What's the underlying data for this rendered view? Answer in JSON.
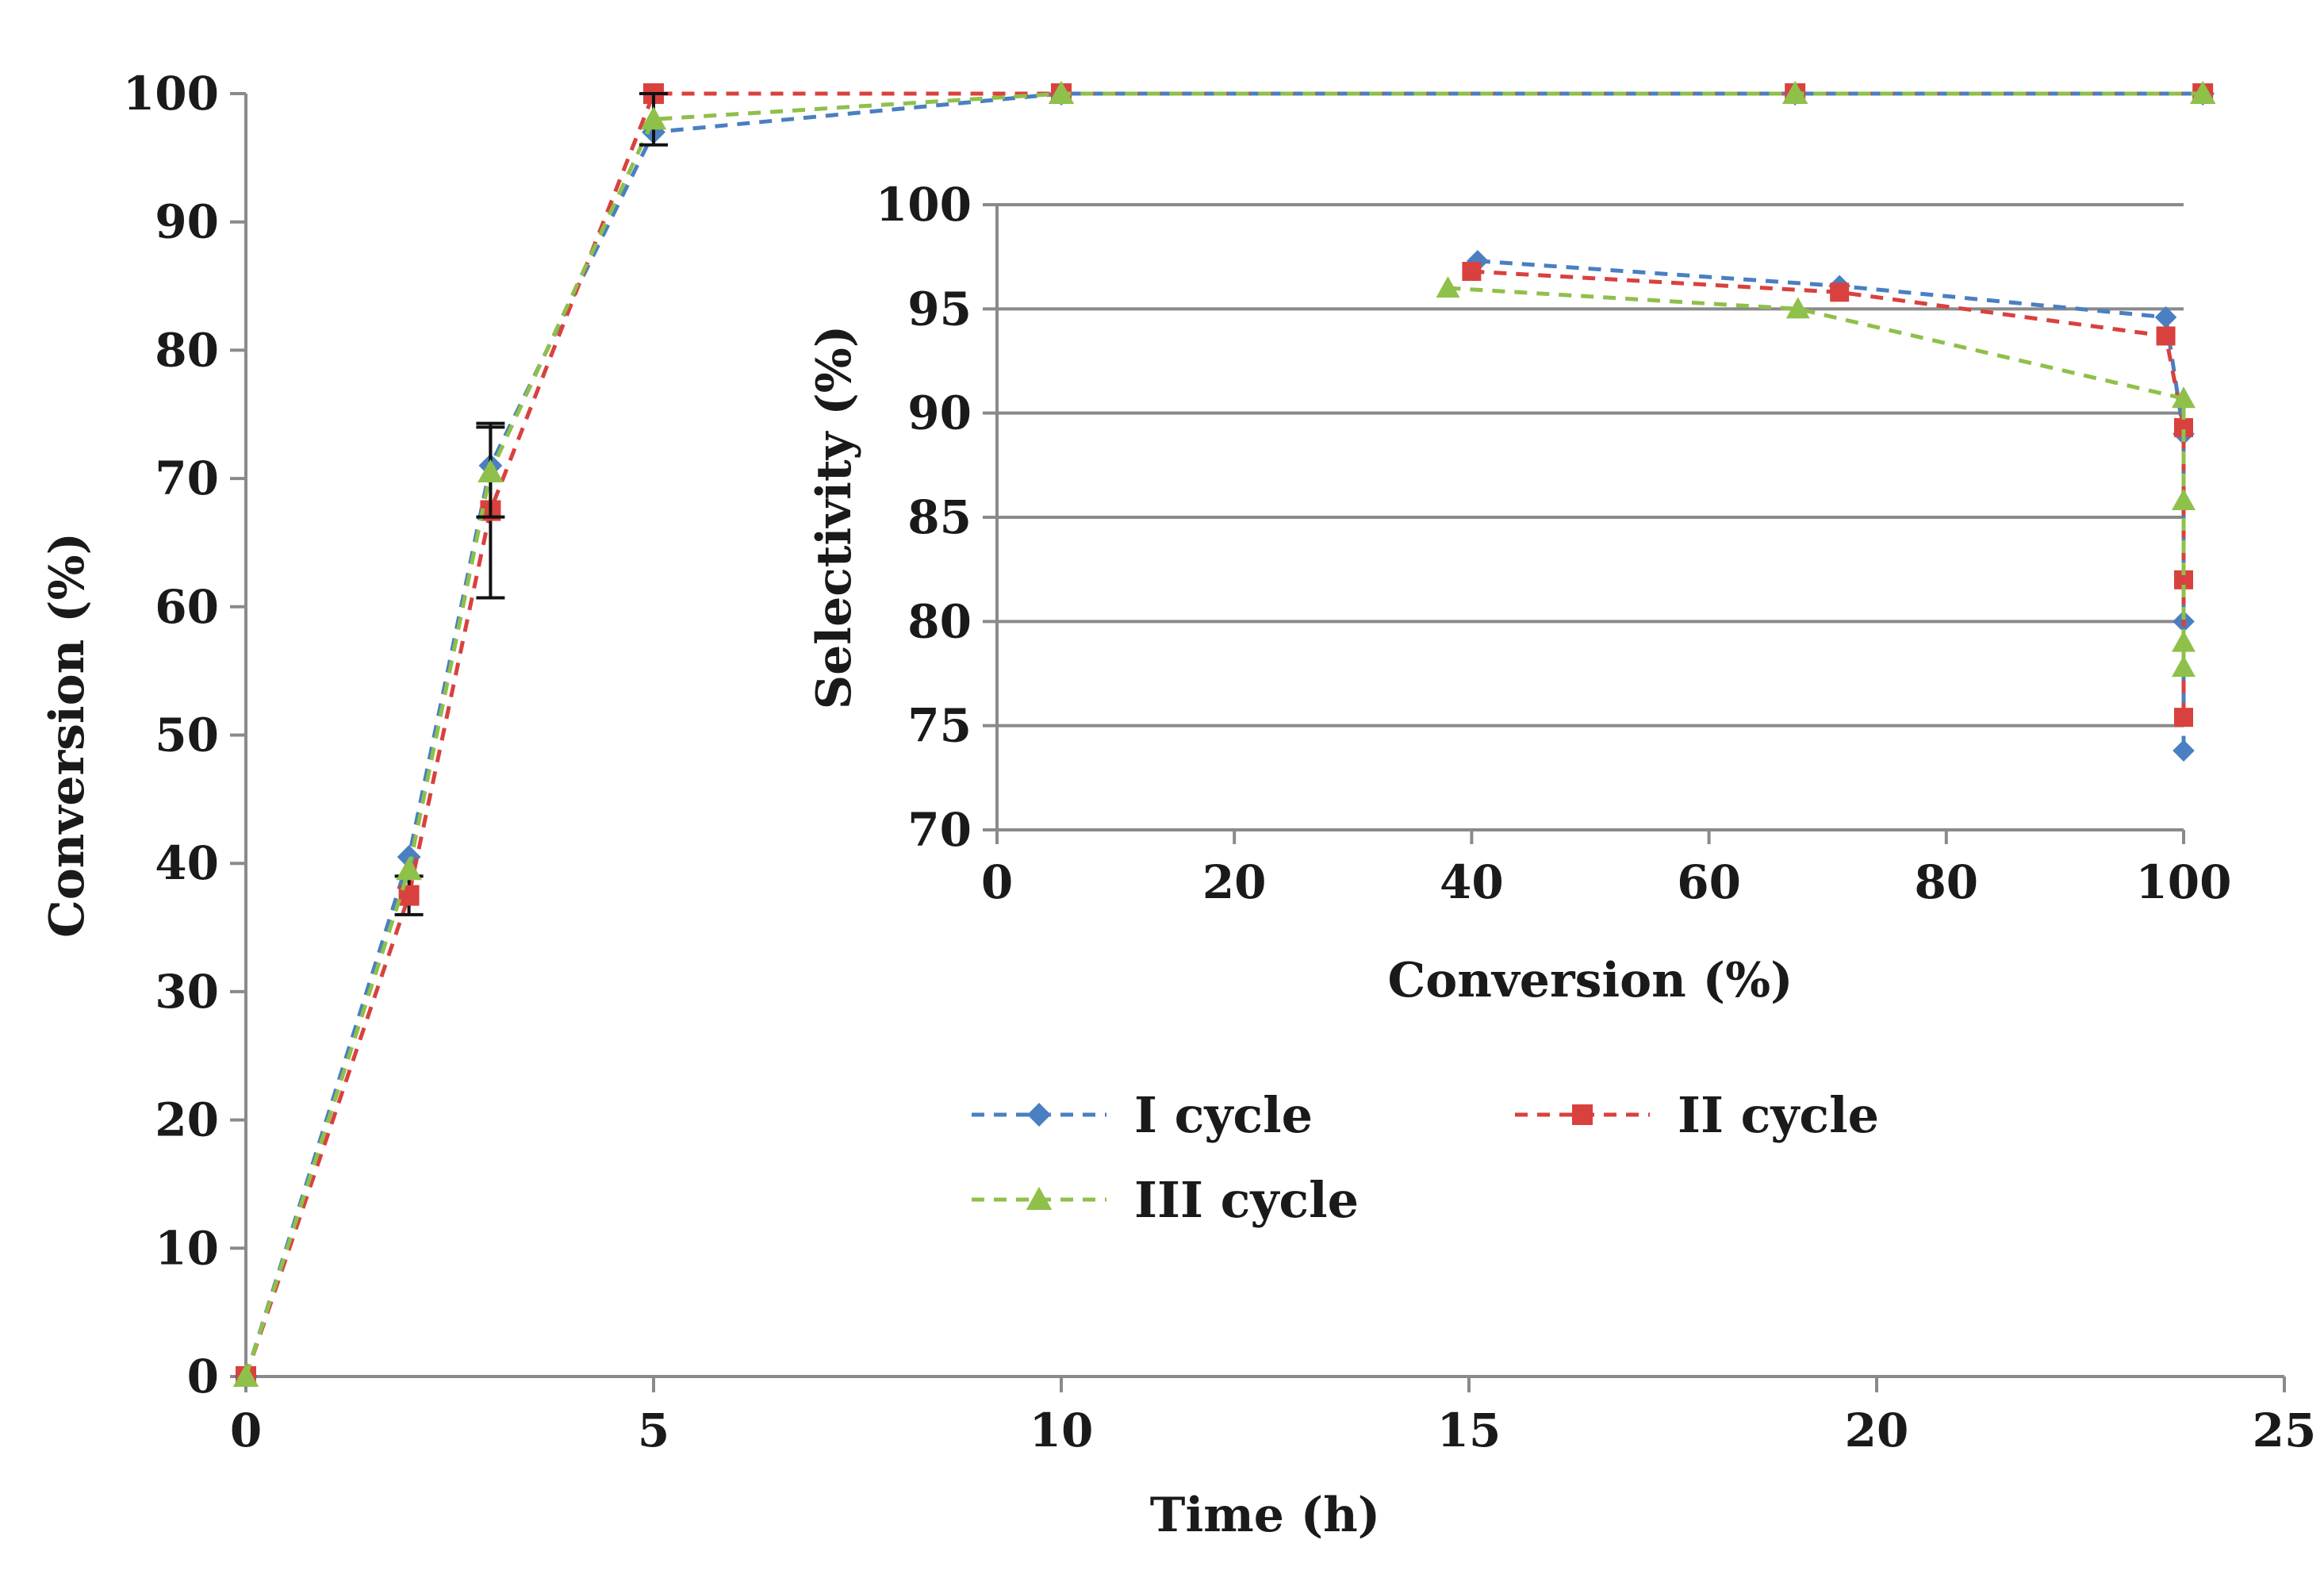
{
  "chart_data": [
    {
      "id": "main",
      "type": "line",
      "title": "",
      "xlabel": "Time (h)",
      "ylabel": "Conversion (%)",
      "xlim": [
        0,
        25
      ],
      "ylim": [
        0,
        100
      ],
      "xticks": [
        0,
        5,
        10,
        15,
        20,
        25
      ],
      "yticks": [
        0,
        10,
        20,
        30,
        40,
        50,
        60,
        70,
        80,
        90,
        100
      ],
      "grid": false,
      "series": [
        {
          "name": "I cycle",
          "color": "#4a7fc1",
          "marker": "diamond",
          "x": [
            0,
            2,
            3,
            5,
            10,
            19,
            24
          ],
          "y": [
            0,
            40.5,
            71,
            97,
            100,
            100,
            100
          ]
        },
        {
          "name": "II cycle",
          "color": "#d9413e",
          "marker": "square",
          "x": [
            0,
            2,
            3,
            5,
            10,
            19,
            24
          ],
          "y": [
            0,
            37.5,
            67.5,
            100,
            100,
            100,
            100
          ],
          "error": [
            0,
            1.5,
            6.8,
            0,
            0,
            0,
            0
          ]
        },
        {
          "name": "III cycle",
          "color": "#8fc04a",
          "marker": "triangle",
          "x": [
            0,
            2,
            3,
            5,
            10,
            19,
            24
          ],
          "y": [
            0,
            39.5,
            70.5,
            98,
            100,
            100,
            100
          ],
          "error": [
            0,
            0,
            3.5,
            2.0,
            0,
            0,
            0
          ]
        }
      ]
    },
    {
      "id": "inset",
      "type": "line",
      "title": "",
      "xlabel": "Conversion (%)",
      "ylabel": "Selectivity (%)",
      "xlim": [
        0,
        100
      ],
      "ylim": [
        70,
        100
      ],
      "xticks": [
        0,
        20,
        40,
        60,
        80,
        100
      ],
      "yticks": [
        70,
        75,
        80,
        85,
        90,
        95,
        100
      ],
      "grid": true,
      "series": [
        {
          "name": "I cycle",
          "color": "#4a7fc1",
          "marker": "diamond",
          "x": [
            40.5,
            71,
            98.5,
            100,
            100,
            100
          ],
          "y": [
            97.3,
            96.1,
            94.6,
            89,
            80,
            73.8
          ]
        },
        {
          "name": "II cycle",
          "color": "#d9413e",
          "marker": "square",
          "x": [
            40,
            71,
            98.5,
            100,
            100,
            100
          ],
          "y": [
            96.8,
            95.8,
            93.7,
            89.3,
            82,
            75.4
          ]
        },
        {
          "name": "III cycle",
          "color": "#8fc04a",
          "marker": "triangle",
          "x": [
            38,
            67.5,
            100,
            100,
            100,
            100
          ],
          "y": [
            96,
            95,
            90.7,
            85.8,
            79,
            77.8
          ]
        }
      ]
    }
  ],
  "legend": {
    "placement": "center-right",
    "items": [
      {
        "label": "I cycle",
        "color": "#4a7fc1",
        "marker": "diamond"
      },
      {
        "label": "II cycle",
        "color": "#d9413e",
        "marker": "square"
      },
      {
        "label": "III cycle",
        "color": "#8fc04a",
        "marker": "triangle"
      }
    ]
  }
}
